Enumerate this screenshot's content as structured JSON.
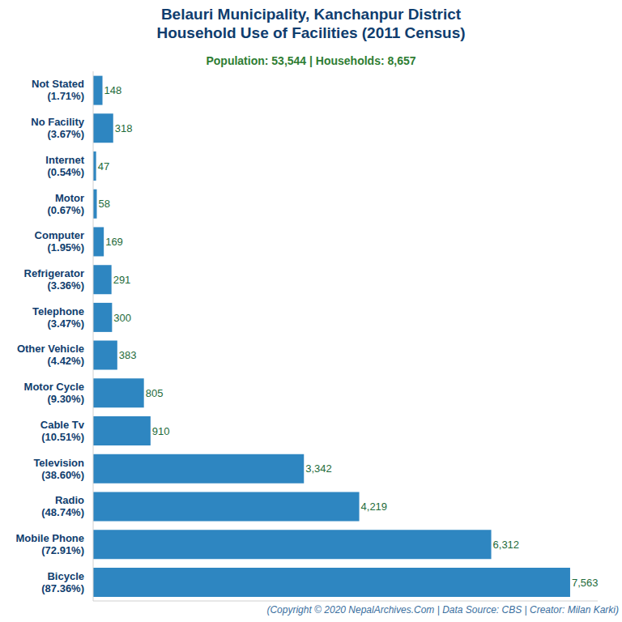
{
  "chart_data": {
    "type": "bar",
    "title": [
      "Belauri Municipality, Kanchanpur District",
      "Household Use of Facilities (2011 Census)"
    ],
    "subtitle": "Population: 53,544 | Households: 8,657",
    "annotations": [
      "(Copyright © 2020 NepalArchives.Com | Data Source: CBS | Creator: Milan Karki)"
    ],
    "categories": [
      "Not Stated (1.71%)",
      "No Facility (3.67%)",
      "Internet (0.54%)",
      "Motor (0.67%)",
      "Computer (1.95%)",
      "Refrigerator (3.36%)",
      "Telephone (3.47%)",
      "Other Vehicle (4.42%)",
      "Motor Cycle (9.30%)",
      "Cable Tv (10.51%)",
      "Television (38.60%)",
      "Radio (48.74%)",
      "Mobile Phone (72.91%)",
      "Bicycle (87.36%)"
    ],
    "values": [
      148,
      318,
      47,
      58,
      169,
      291,
      300,
      383,
      805,
      910,
      3342,
      4219,
      6312,
      7563
    ],
    "value_labels": [
      "148",
      "318",
      "47",
      "58",
      "169",
      "291",
      "300",
      "383",
      "805",
      "910",
      "3,342",
      "4,219",
      "6,312",
      "7,563"
    ],
    "color": "#2e86c1",
    "orientation": "horizontal",
    "data_labels": true,
    "tick_labels": "y",
    "grid": false,
    "xlim": [
      0,
      8000
    ]
  }
}
